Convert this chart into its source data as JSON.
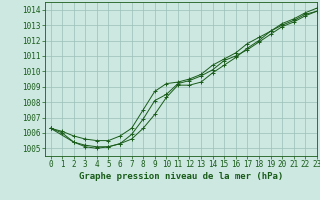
{
  "title": "Graphe pression niveau de la mer (hPa)",
  "background_color": "#cce8e0",
  "grid_color": "#9bbfb8",
  "line_color": "#1a5c1a",
  "xlim": [
    -0.5,
    23
  ],
  "ylim": [
    1004.5,
    1014.5
  ],
  "yticks": [
    1005,
    1006,
    1007,
    1008,
    1009,
    1010,
    1011,
    1012,
    1013,
    1014
  ],
  "xticks": [
    0,
    1,
    2,
    3,
    4,
    5,
    6,
    7,
    8,
    9,
    10,
    11,
    12,
    13,
    14,
    15,
    16,
    17,
    18,
    19,
    20,
    21,
    22,
    23
  ],
  "line1_x": [
    0,
    1,
    2,
    3,
    4,
    5,
    6,
    7,
    8,
    9,
    10,
    11,
    12,
    13,
    14,
    15,
    16,
    17,
    18,
    19,
    20,
    21,
    22,
    23
  ],
  "line1_y": [
    1006.3,
    1006.1,
    1005.8,
    1005.6,
    1005.5,
    1005.5,
    1005.8,
    1006.3,
    1007.5,
    1008.7,
    1009.2,
    1009.3,
    1009.5,
    1009.8,
    1010.4,
    1010.8,
    1011.2,
    1011.8,
    1012.2,
    1012.6,
    1013.1,
    1013.4,
    1013.8,
    1014.1
  ],
  "line2_x": [
    0,
    1,
    2,
    3,
    4,
    5,
    6,
    7,
    8,
    9,
    10,
    11,
    12,
    13,
    14,
    15,
    16,
    17,
    18,
    19,
    20,
    21,
    22,
    23
  ],
  "line2_y": [
    1006.3,
    1006.0,
    1005.4,
    1005.1,
    1005.0,
    1005.1,
    1005.3,
    1005.6,
    1006.3,
    1007.2,
    1008.3,
    1009.1,
    1009.1,
    1009.3,
    1009.9,
    1010.4,
    1010.9,
    1011.5,
    1012.0,
    1012.6,
    1013.0,
    1013.3,
    1013.7,
    1013.9
  ],
  "line3_x": [
    0,
    2,
    3,
    4,
    5,
    6,
    7,
    8,
    9,
    10,
    11,
    12,
    13,
    14,
    15,
    16,
    17,
    18,
    19,
    20,
    21,
    22,
    23
  ],
  "line3_y": [
    1006.3,
    1005.4,
    1005.2,
    1005.1,
    1005.1,
    1005.3,
    1005.9,
    1006.9,
    1008.1,
    1008.5,
    1009.2,
    1009.4,
    1009.7,
    1010.1,
    1010.7,
    1011.0,
    1011.4,
    1011.9,
    1012.4,
    1012.9,
    1013.2,
    1013.6,
    1013.9
  ],
  "title_color": "#1a5c1a",
  "title_fontsize": 6.5,
  "tick_fontsize": 5.5,
  "tick_color": "#1a5c1a"
}
